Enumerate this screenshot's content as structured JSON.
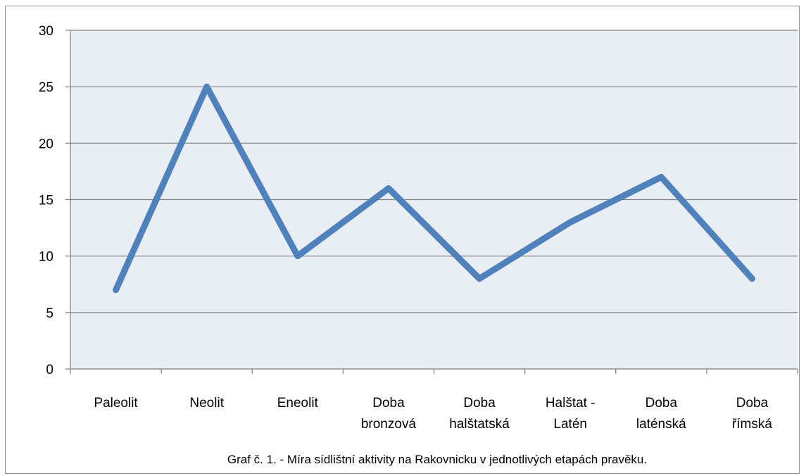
{
  "chart_data": {
    "type": "line",
    "categories": [
      [
        "Paleolit"
      ],
      [
        "Neolit"
      ],
      [
        "Eneolit"
      ],
      [
        "Doba",
        "bronzová"
      ],
      [
        "Doba",
        "halštatská"
      ],
      [
        "Halštat -",
        "Latén"
      ],
      [
        "Doba",
        "laténská"
      ],
      [
        "Doba",
        "římská"
      ]
    ],
    "series": [
      {
        "values": [
          7,
          25,
          10,
          16,
          8,
          13,
          17,
          8
        ]
      }
    ],
    "ylim": [
      0,
      30
    ],
    "yticks": [
      0,
      5,
      10,
      15,
      20,
      25,
      30
    ],
    "grid": true,
    "legend": "none",
    "caption": "Graf č. 1. - Míra sídlištní aktivity na Rakovnicku v jednotlivých etapách pravěku.",
    "colors": {
      "line": "#4f81bd",
      "plot_background": "#e9edf4",
      "grid": "#808080"
    }
  }
}
